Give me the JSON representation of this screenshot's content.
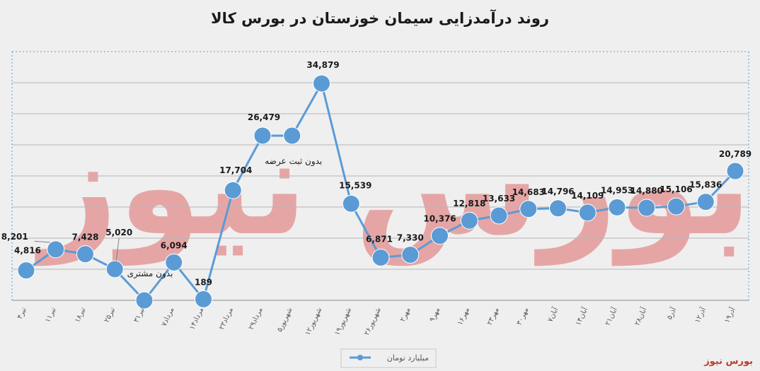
{
  "chart_data": {
    "type": "line",
    "title": "روند درآمدزایی سیمان خوزستان در بورس کالا",
    "series_name": "میلیارد تومان",
    "categories": [
      "۴تیر",
      "۱۱تیر",
      "۱۸تیر",
      "۲۵تیر",
      "۳۱تیر",
      "۷مرداد",
      "۱۴مرداد",
      "۲۳مرداد",
      "۲۹مرداد",
      "۵شهریور",
      "۱۲شهریور",
      "۱۹شهریور",
      "۲۶شهریور",
      "۲مهر",
      "۹مهر",
      "۱۶مهر",
      "۲۳مهر",
      "۳۰مهر",
      "۷آبان",
      "۱۴آبان",
      "۲۱آبان",
      "۲۸آبان",
      "۵آذر",
      "۱۲آذر",
      "۱۹آذر"
    ],
    "values": [
      4816,
      8201,
      7428,
      5020,
      0,
      6094,
      189,
      17704,
      26479,
      26479,
      34879,
      15539,
      6871,
      7330,
      10376,
      12818,
      13633,
      14683,
      14796,
      14109,
      14953,
      14880,
      15106,
      15836,
      20789
    ],
    "labels": [
      "4,816",
      "8,201",
      "7,428",
      "5,020",
      "",
      "6,094",
      "189",
      "17,704",
      "26,479",
      "",
      "34,879",
      "15,539",
      "6,871",
      "7,330",
      "10,376",
      "12,818",
      "13,633",
      "14,683",
      "14,796",
      "14,109",
      "14,953",
      "14,880",
      "15,106",
      "15,836",
      "20,789"
    ],
    "annotations": [
      "بدون مشتری",
      "بدون ثبت عرضه"
    ],
    "ylim": [
      0,
      40000
    ],
    "grid": true,
    "line_color": "#5b9bd5",
    "legend_position": "bottom"
  },
  "footer": {
    "brand": "بورس نیوز"
  },
  "watermark": "بورس نیوز"
}
